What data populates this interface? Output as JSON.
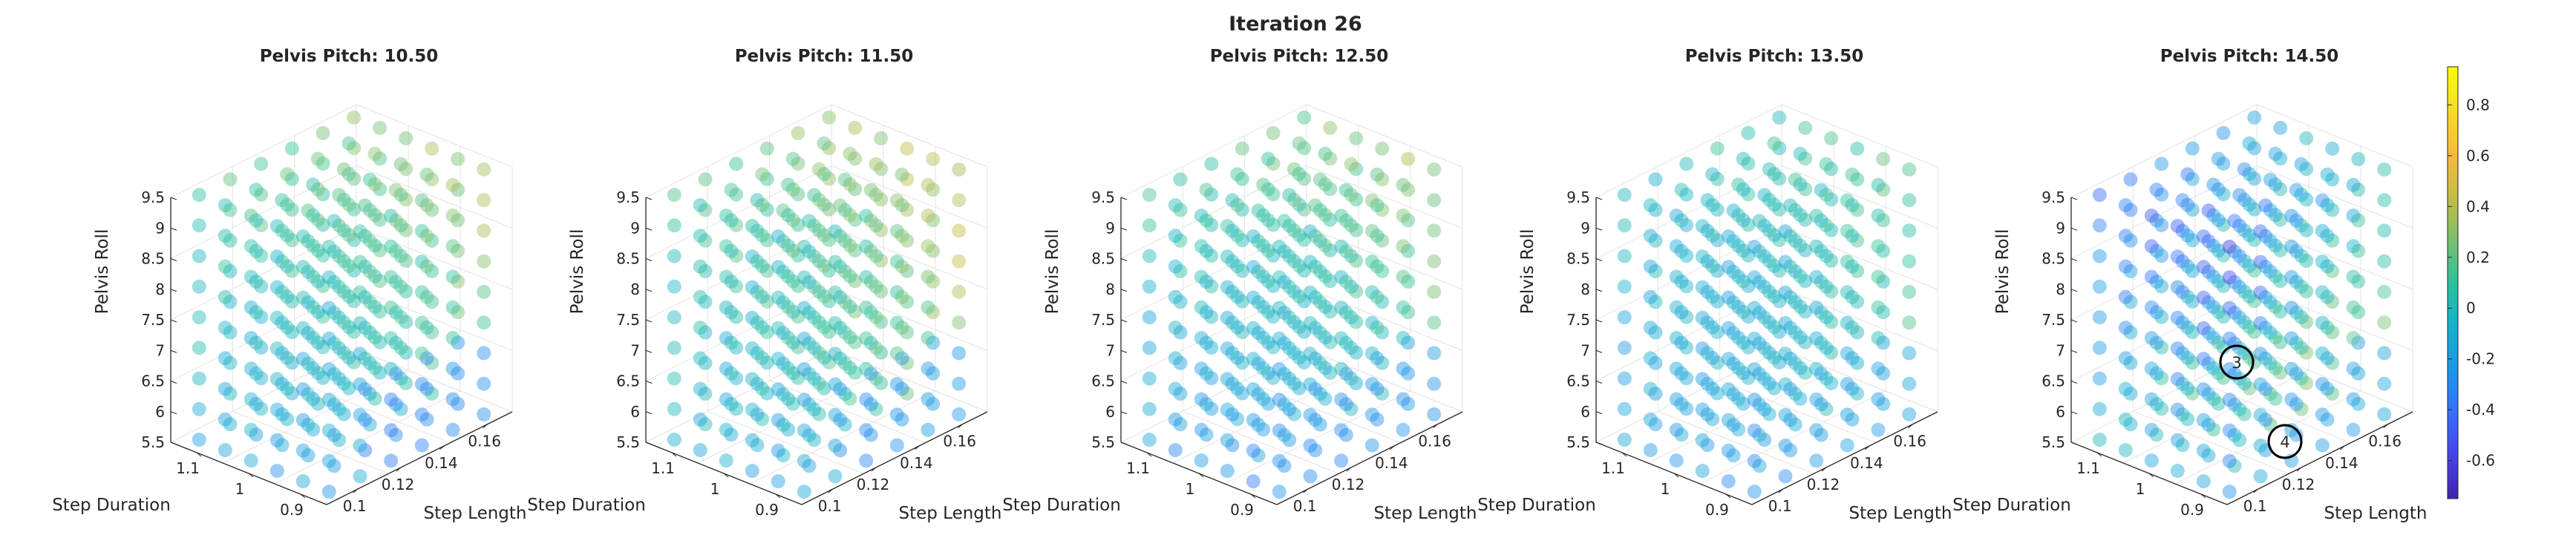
{
  "figure": {
    "title": "Iteration 26"
  },
  "axes": {
    "x_label": "Step Length",
    "y_label": "Step Duration",
    "z_label": "Pelvis Roll",
    "x_ticks": [
      "0.1",
      "0.12",
      "0.14",
      "0.16"
    ],
    "y_ticks": [
      "0.9",
      "1",
      "1.1"
    ],
    "z_ticks": [
      "5.5",
      "6",
      "6.5",
      "7",
      "7.5",
      "8",
      "8.5",
      "9",
      "9.5"
    ]
  },
  "colorbar": {
    "ticks": [
      "0.8",
      "0.6",
      "0.4",
      "0.2",
      "0",
      "-0.2",
      "-0.4",
      "-0.6"
    ],
    "tick_values": [
      0.8,
      0.6,
      0.4,
      0.2,
      0,
      -0.2,
      -0.4,
      -0.6
    ],
    "range": [
      -0.75,
      0.95
    ],
    "colors": [
      "#3e26a8",
      "#4743e6",
      "#3570fc",
      "#1e97e6",
      "#17b0cd",
      "#2dc09b",
      "#7cbf6e",
      "#c6bc48",
      "#f8ba3d",
      "#f6dd26",
      "#f9fb0e"
    ]
  },
  "markers": [
    {
      "label": "3",
      "panel": 4
    },
    {
      "label": "4",
      "panel": 4
    }
  ],
  "chart_data": [
    {
      "type": "scatter",
      "title": "Pelvis Pitch: 10.50",
      "pelvis_pitch": 10.5,
      "grid": true,
      "xlim": [
        0.09,
        0.17
      ],
      "ylim": [
        0.85,
        1.15
      ],
      "zlim": [
        5.5,
        9.5
      ],
      "x_grid": [
        0.1,
        0.12,
        0.14,
        0.16
      ],
      "y_grid": [
        0.9,
        1.0,
        1.1
      ],
      "z_grid": [
        5.5,
        6,
        6.5,
        7,
        7.5,
        8,
        8.5,
        9,
        9.5
      ],
      "value_note": "approximate values by color",
      "value_pattern": {
        "base": 0.05,
        "x_gain": 0.35,
        "z_gain": 0.25,
        "low_region": -0.45
      }
    },
    {
      "type": "scatter",
      "title": "Pelvis Pitch: 11.50",
      "pelvis_pitch": 11.5,
      "grid": true,
      "xlim": [
        0.09,
        0.17
      ],
      "ylim": [
        0.85,
        1.15
      ],
      "zlim": [
        5.5,
        9.5
      ],
      "x_grid": [
        0.1,
        0.12,
        0.14,
        0.16
      ],
      "y_grid": [
        0.9,
        1.0,
        1.1
      ],
      "z_grid": [
        5.5,
        6,
        6.5,
        7,
        7.5,
        8,
        8.5,
        9,
        9.5
      ],
      "value_note": "approximate values by color",
      "value_pattern": {
        "base": 0.1,
        "x_gain": 0.45,
        "z_gain": 0.2,
        "low_region": -0.4
      }
    },
    {
      "type": "scatter",
      "title": "Pelvis Pitch: 12.50",
      "pelvis_pitch": 12.5,
      "grid": true,
      "xlim": [
        0.09,
        0.17
      ],
      "ylim": [
        0.85,
        1.15
      ],
      "zlim": [
        5.5,
        9.5
      ],
      "x_grid": [
        0.1,
        0.12,
        0.14,
        0.16
      ],
      "y_grid": [
        0.9,
        1.0,
        1.1
      ],
      "z_grid": [
        5.5,
        6,
        6.5,
        7,
        7.5,
        8,
        8.5,
        9,
        9.5
      ],
      "value_note": "approximate values by color",
      "value_pattern": {
        "base": 0.0,
        "x_gain": 0.35,
        "z_gain": 0.3,
        "low_region": -0.35
      }
    },
    {
      "type": "scatter",
      "title": "Pelvis Pitch: 13.50",
      "pelvis_pitch": 13.5,
      "grid": true,
      "xlim": [
        0.09,
        0.17
      ],
      "ylim": [
        0.85,
        1.15
      ],
      "zlim": [
        5.5,
        9.5
      ],
      "x_grid": [
        0.1,
        0.12,
        0.14,
        0.16
      ],
      "y_grid": [
        0.9,
        1.0,
        1.1
      ],
      "z_grid": [
        5.5,
        6,
        6.5,
        7,
        7.5,
        8,
        8.5,
        9,
        9.5
      ],
      "value_note": "approximate values by color",
      "value_pattern": {
        "base": -0.05,
        "x_gain": 0.3,
        "z_gain": 0.15,
        "low_region": -0.25
      }
    },
    {
      "type": "scatter",
      "title": "Pelvis Pitch: 14.50",
      "pelvis_pitch": 14.5,
      "grid": true,
      "xlim": [
        0.09,
        0.17
      ],
      "ylim": [
        0.85,
        1.15
      ],
      "zlim": [
        5.5,
        9.5
      ],
      "x_grid": [
        0.1,
        0.12,
        0.14,
        0.16
      ],
      "y_grid": [
        0.9,
        1.0,
        1.1
      ],
      "z_grid": [
        5.5,
        6,
        6.5,
        7,
        7.5,
        8,
        8.5,
        9,
        9.5
      ],
      "value_note": "approximate values by color",
      "value_pattern": {
        "base": -0.1,
        "x_gain": 0.55,
        "z_gain": -0.35,
        "low_region": -0.35
      }
    }
  ]
}
